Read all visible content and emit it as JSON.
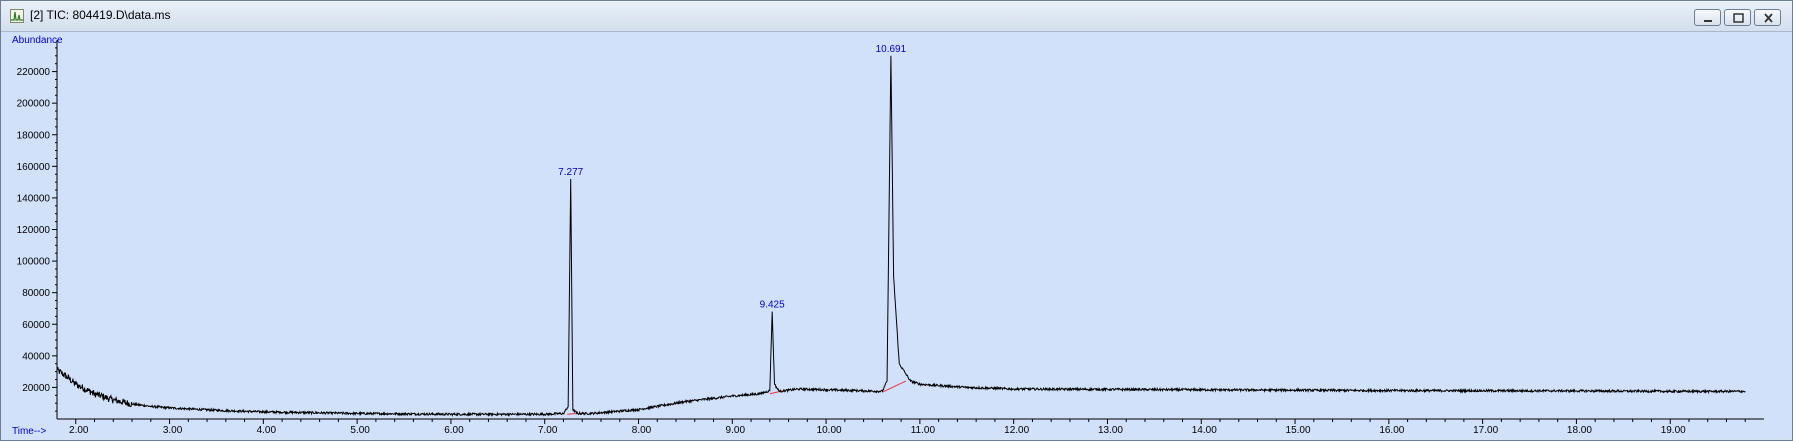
{
  "window": {
    "title": "[2] TIC: 804419.D\\data.ms",
    "app_icon": "chromatogram-icon",
    "controls": [
      "minimize-icon",
      "restore-icon",
      "close-icon"
    ]
  },
  "colors": {
    "plot_background": "#d2e1fa",
    "trace": "#000000",
    "baseline": "#e8323c",
    "axis_labels": "#0000c8",
    "peak_labels": "#0000c8"
  },
  "chart_data": {
    "type": "line",
    "title": "",
    "xlabel": "Time-->",
    "ylabel": "Abundance",
    "xlim": [
      1.8,
      20.0
    ],
    "ylim": [
      0,
      240000
    ],
    "x_ticks": [
      "2.00",
      "3.00",
      "4.00",
      "5.00",
      "6.00",
      "7.00",
      "8.00",
      "9.00",
      "10.00",
      "11.00",
      "12.00",
      "13.00",
      "14.00",
      "15.00",
      "16.00",
      "17.00",
      "18.00",
      "19.00"
    ],
    "y_ticks": [
      "20000",
      "40000",
      "60000",
      "80000",
      "100000",
      "120000",
      "140000",
      "160000",
      "180000",
      "200000",
      "220000"
    ],
    "grid": false,
    "series": [
      {
        "x": [
          1.8,
          1.9,
          2.0,
          2.2,
          2.4,
          2.6,
          2.8,
          3.0,
          3.5,
          4.0,
          5.0,
          6.0,
          7.0,
          7.2,
          7.25,
          7.277,
          7.3,
          7.35,
          7.5,
          8.0,
          8.5,
          9.0,
          9.3,
          9.4,
          9.425,
          9.45,
          9.5,
          9.7,
          10.0,
          10.3,
          10.6,
          10.65,
          10.691,
          10.72,
          10.78,
          10.9,
          11.0,
          11.5,
          12.0,
          14.0,
          16.0,
          18.0,
          19.0,
          19.8
        ],
        "y": [
          31000,
          27000,
          22000,
          16000,
          12000,
          9500,
          8000,
          7000,
          5500,
          4500,
          3500,
          3000,
          3000,
          3500,
          8000,
          152000,
          6000,
          3500,
          3500,
          6000,
          11000,
          14500,
          16000,
          18000,
          68000,
          22000,
          17500,
          19000,
          18500,
          18000,
          17500,
          24000,
          230000,
          90000,
          35000,
          24000,
          22000,
          20000,
          19000,
          18500,
          18000,
          17800,
          17500,
          17500
        ]
      }
    ],
    "peaks": [
      {
        "rt": 7.277,
        "abundance": 152000,
        "label": "7.277"
      },
      {
        "rt": 9.425,
        "abundance": 68000,
        "label": "9.425"
      },
      {
        "rt": 10.691,
        "abundance": 230000,
        "label": "10.691"
      }
    ],
    "baselines": [
      {
        "from": [
          7.24,
          3000
        ],
        "to": [
          7.35,
          3500
        ]
      },
      {
        "from": [
          9.4,
          16000
        ],
        "to": [
          9.55,
          18000
        ]
      },
      {
        "from": [
          10.6,
          17000
        ],
        "to": [
          10.85,
          24000
        ]
      }
    ]
  }
}
